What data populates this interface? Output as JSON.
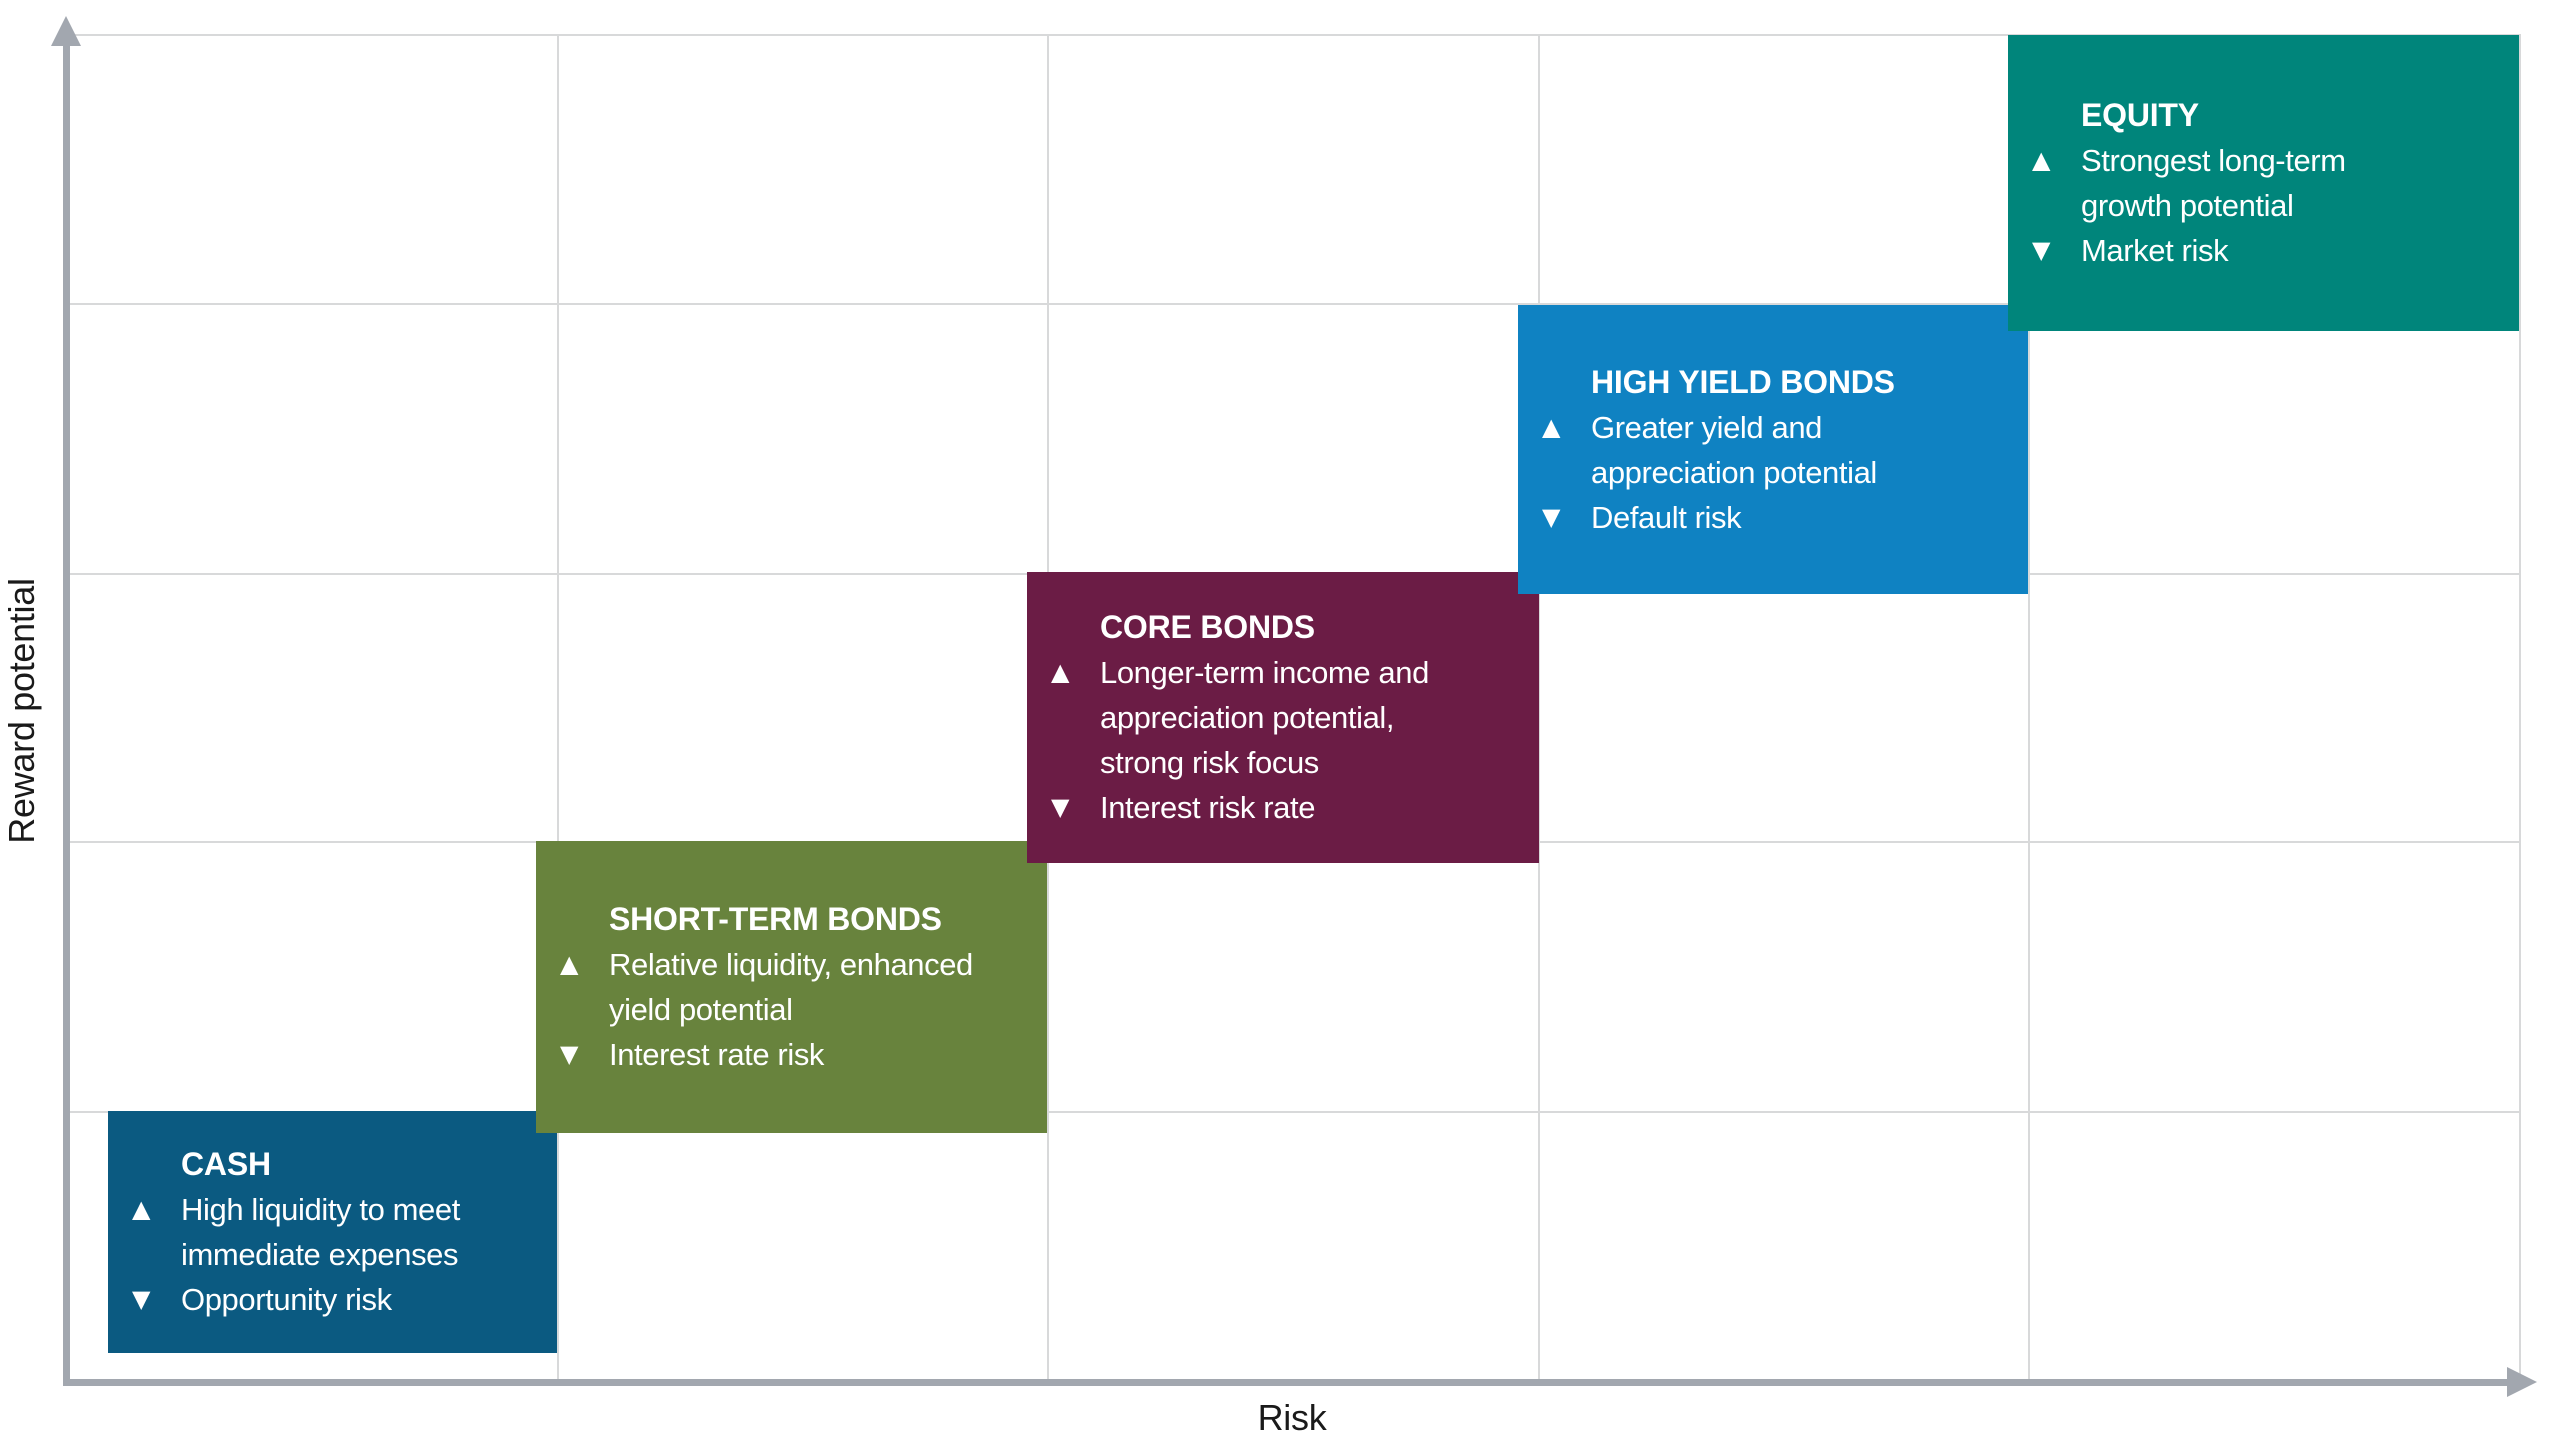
{
  "axes": {
    "y_label": "Reward potential",
    "x_label": "Risk"
  },
  "icons": {
    "up_triangle": "▲",
    "down_triangle": "▼"
  },
  "palette": {
    "axis_line": "#a2a7af",
    "gridline": "#d8d9da",
    "label_text": "#1a1a1a",
    "box_text": "#ffffff"
  },
  "boxes": [
    {
      "id": "cash",
      "title": "CASH",
      "benefit": "High liquidity to meet\nimmediate expenses",
      "risk": "Opportunity risk",
      "color": "#0b5a81",
      "risk_level": 1,
      "reward_level": 1
    },
    {
      "id": "short-term-bonds",
      "title": "SHORT-TERM BONDS",
      "benefit": "Relative liquidity, enhanced\nyield potential",
      "risk": "Interest rate risk",
      "color": "#68833d",
      "risk_level": 2,
      "reward_level": 2
    },
    {
      "id": "core-bonds",
      "title": "CORE BONDS",
      "benefit": "Longer-term income and\nappreciation potential,\nstrong risk focus",
      "risk": "Interest risk rate",
      "color": "#6b1c45",
      "risk_level": 3,
      "reward_level": 3
    },
    {
      "id": "high-yield-bonds",
      "title": "HIGH YIELD BONDS",
      "benefit": "Greater yield and\nappreciation potential",
      "risk": "Default risk",
      "color": "#0f82c2",
      "risk_level": 4,
      "reward_level": 4
    },
    {
      "id": "equity",
      "title": "EQUITY",
      "benefit": "Strongest long-term\ngrowth potential",
      "risk": "Market risk",
      "color": "#00857b",
      "risk_level": 5,
      "reward_level": 5
    }
  ],
  "chart_data": {
    "type": "scatter",
    "title": "",
    "xlabel": "Risk",
    "ylabel": "Reward potential",
    "x": [
      1,
      2,
      3,
      4,
      5
    ],
    "y": [
      1,
      2,
      3,
      4,
      5
    ],
    "point_labels": [
      "CASH",
      "SHORT-TERM BONDS",
      "CORE BONDS",
      "HIGH YIELD BONDS",
      "EQUITY"
    ],
    "xlim": [
      0,
      5
    ],
    "ylim": [
      0,
      5
    ],
    "grid": true,
    "legend_position": "none"
  }
}
